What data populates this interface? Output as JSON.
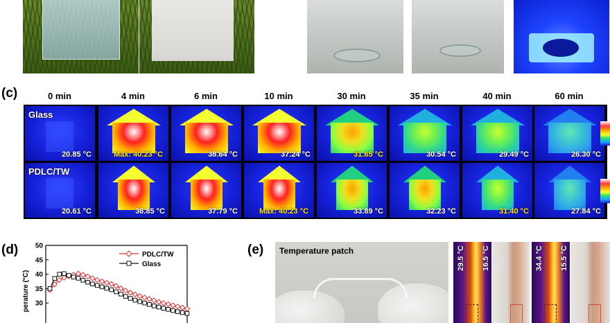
{
  "panel_c": {
    "letter": "(c)",
    "times": [
      "0 min",
      "4 min",
      "6 min",
      "10 min",
      "30 min",
      "35 min",
      "40 min",
      "60 min"
    ],
    "rows": [
      {
        "name": "Glass",
        "temps": [
          "20.85 °C",
          "Max: 40.23 °C",
          "38.64 °C",
          "37.24 °C",
          "31.65 °C",
          "30.54 °C",
          "29.49 °C",
          "26.30 °C"
        ],
        "highlight": [
          false,
          true,
          false,
          false,
          true,
          false,
          false,
          false
        ]
      },
      {
        "name": "PDLC/TW",
        "temps": [
          "20.61 °C",
          "36.85 °C",
          "37.79 °C",
          "Max: 40.23 °C",
          "33.89 °C",
          "32.23 °C",
          "31.40 °C",
          "27.84 °C"
        ],
        "highlight": [
          false,
          false,
          false,
          true,
          false,
          false,
          true,
          false
        ]
      }
    ]
  },
  "panel_d": {
    "letter": "(d)",
    "chart_data": {
      "type": "line",
      "ylabel": "perature (°C)",
      "ylim": [
        25,
        50
      ],
      "yticks": [
        "50",
        "45",
        "40",
        "35",
        "30"
      ],
      "series": [
        {
          "name": "PDLC/TW",
          "color": "#e03030",
          "marker": "diamond",
          "values": [
            34.5,
            36.5,
            38.0,
            38.8,
            39.3,
            39.8,
            40.2,
            39.8,
            39.2,
            38.6,
            38.0,
            37.5,
            37.0,
            36.6,
            35.9,
            35.1,
            34.3,
            33.6,
            33.0,
            32.4,
            31.9,
            31.4,
            30.9,
            30.4,
            30.0,
            29.6,
            29.2,
            28.8,
            28.4,
            28.0
          ]
        },
        {
          "name": "Glass",
          "color": "#111111",
          "marker": "square",
          "values": [
            35.0,
            38.5,
            40.0,
            40.2,
            39.6,
            39.0,
            38.6,
            37.9,
            37.2,
            36.6,
            36.1,
            35.6,
            35.1,
            34.6,
            33.9,
            33.1,
            32.3,
            31.6,
            31.0,
            30.5,
            30.0,
            29.5,
            29.0,
            28.6,
            28.2,
            27.8,
            27.4,
            27.0,
            26.7,
            26.4
          ]
        }
      ]
    }
  },
  "panel_e": {
    "letter": "(e)",
    "photo_title": "Temperature patch",
    "thermal": [
      {
        "high": "29.5 °C",
        "low": "16.5 °C"
      },
      {
        "high": "34.4 °C",
        "low": "15.5 °C"
      }
    ]
  }
}
